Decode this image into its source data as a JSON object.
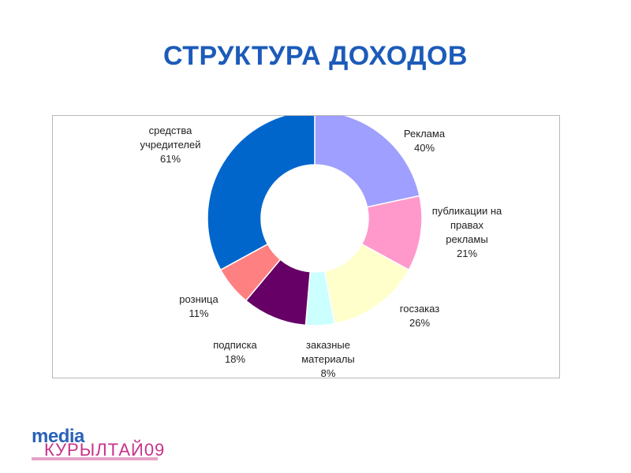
{
  "title": "СТРУКТУРА ДОХОДОВ",
  "logo": {
    "media": "media",
    "kurultai": "КУРЫЛТАЙ09"
  },
  "colors": {
    "title": "#1c5bb9"
  },
  "chart_data": {
    "type": "donut",
    "title": "",
    "slices": [
      {
        "lines": [
          "Реклама",
          "40%"
        ],
        "value": 40,
        "color": "#9f9fff"
      },
      {
        "lines": [
          "публикации на",
          "правах",
          "рекламы",
          "21%"
        ],
        "value": 21,
        "color": "#ff99cc"
      },
      {
        "lines": [
          "госзаказ",
          "26%"
        ],
        "value": 26,
        "color": "#ffffcc"
      },
      {
        "lines": [
          "заказные",
          "материалы",
          "8%"
        ],
        "value": 8,
        "color": "#ccffff"
      },
      {
        "lines": [
          "подписка",
          "18%"
        ],
        "value": 18,
        "color": "#660066"
      },
      {
        "lines": [
          "розница",
          "11%"
        ],
        "value": 11,
        "color": "#ff8080"
      },
      {
        "lines": [
          "средства",
          "учредителей",
          "61%"
        ],
        "value": 61,
        "color": "#0066cc"
      }
    ],
    "legend": "none"
  }
}
